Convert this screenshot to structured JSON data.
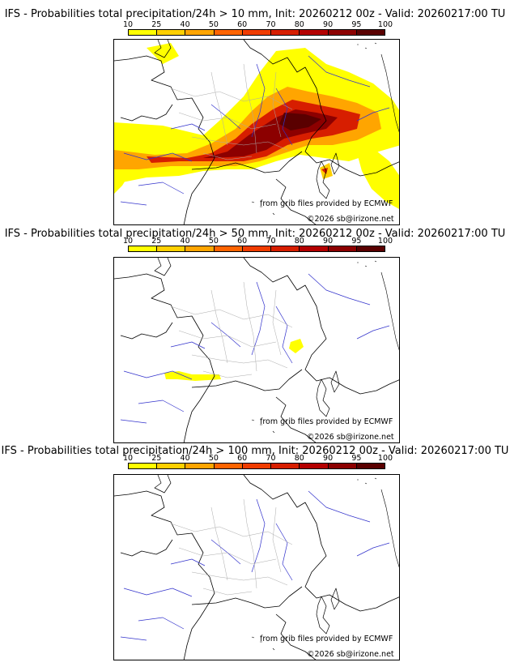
{
  "legend": {
    "ticks": [
      "10",
      "25",
      "40",
      "50",
      "60",
      "70",
      "80",
      "90",
      "95",
      "100"
    ],
    "colors": [
      "#ffff00",
      "#ffd000",
      "#ffa500",
      "#ff8c00",
      "#ff6400",
      "#f03c00",
      "#d71e00",
      "#b40000",
      "#8c0000",
      "#5a0000"
    ]
  },
  "panels": [
    {
      "title": "IFS - Probabilities total precipitation/24h > 10 mm, Init: 20260212 00z - Valid: 20260217:00 TU",
      "credit_source": "from grib files provided by ECMWF",
      "credit_copyright": "©2026 sb@irizone.net"
    },
    {
      "title": "IFS - Probabilities total precipitation/24h > 50 mm, Init: 20260212 00z - Valid: 20260217:00 TU",
      "credit_source": "from grib files provided by ECMWF",
      "credit_copyright": "©2026 sb@irizone.net"
    },
    {
      "title": "IFS - Probabilities total precipitation/24h > 100 mm, Init: 20260212 00z - Valid: 20260217:00 TU",
      "credit_source": "from grib files provided by ECMWF",
      "credit_copyright": "©2026 sb@irizone.net"
    }
  ]
}
